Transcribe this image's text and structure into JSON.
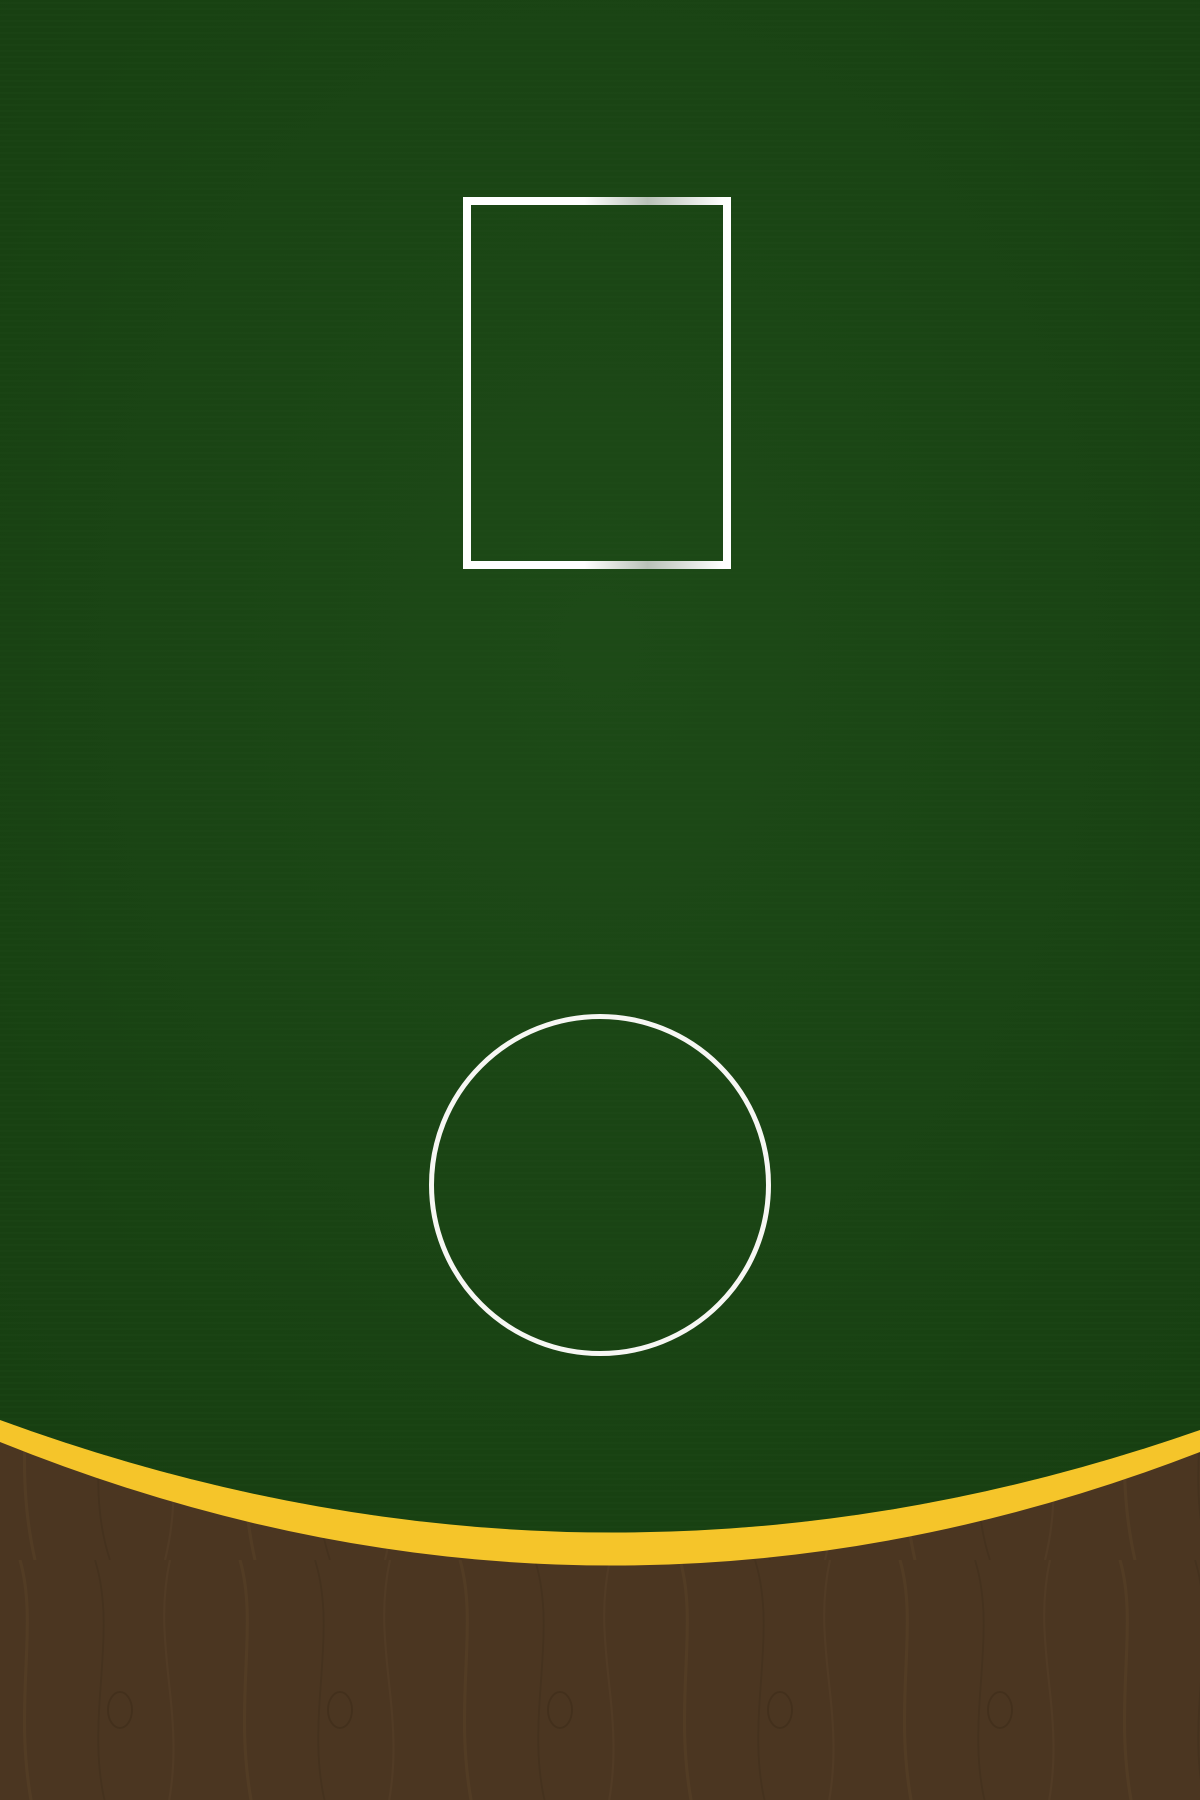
{
  "table": {
    "felt_color": "#1a4514",
    "rail_color": "#f5c52a",
    "wood_color": "#4b3621"
  },
  "card_slot": {
    "state": "empty",
    "border_color": "#f7f7f4"
  },
  "bet_circle": {
    "state": "empty",
    "border_color": "#f7f7f4"
  }
}
